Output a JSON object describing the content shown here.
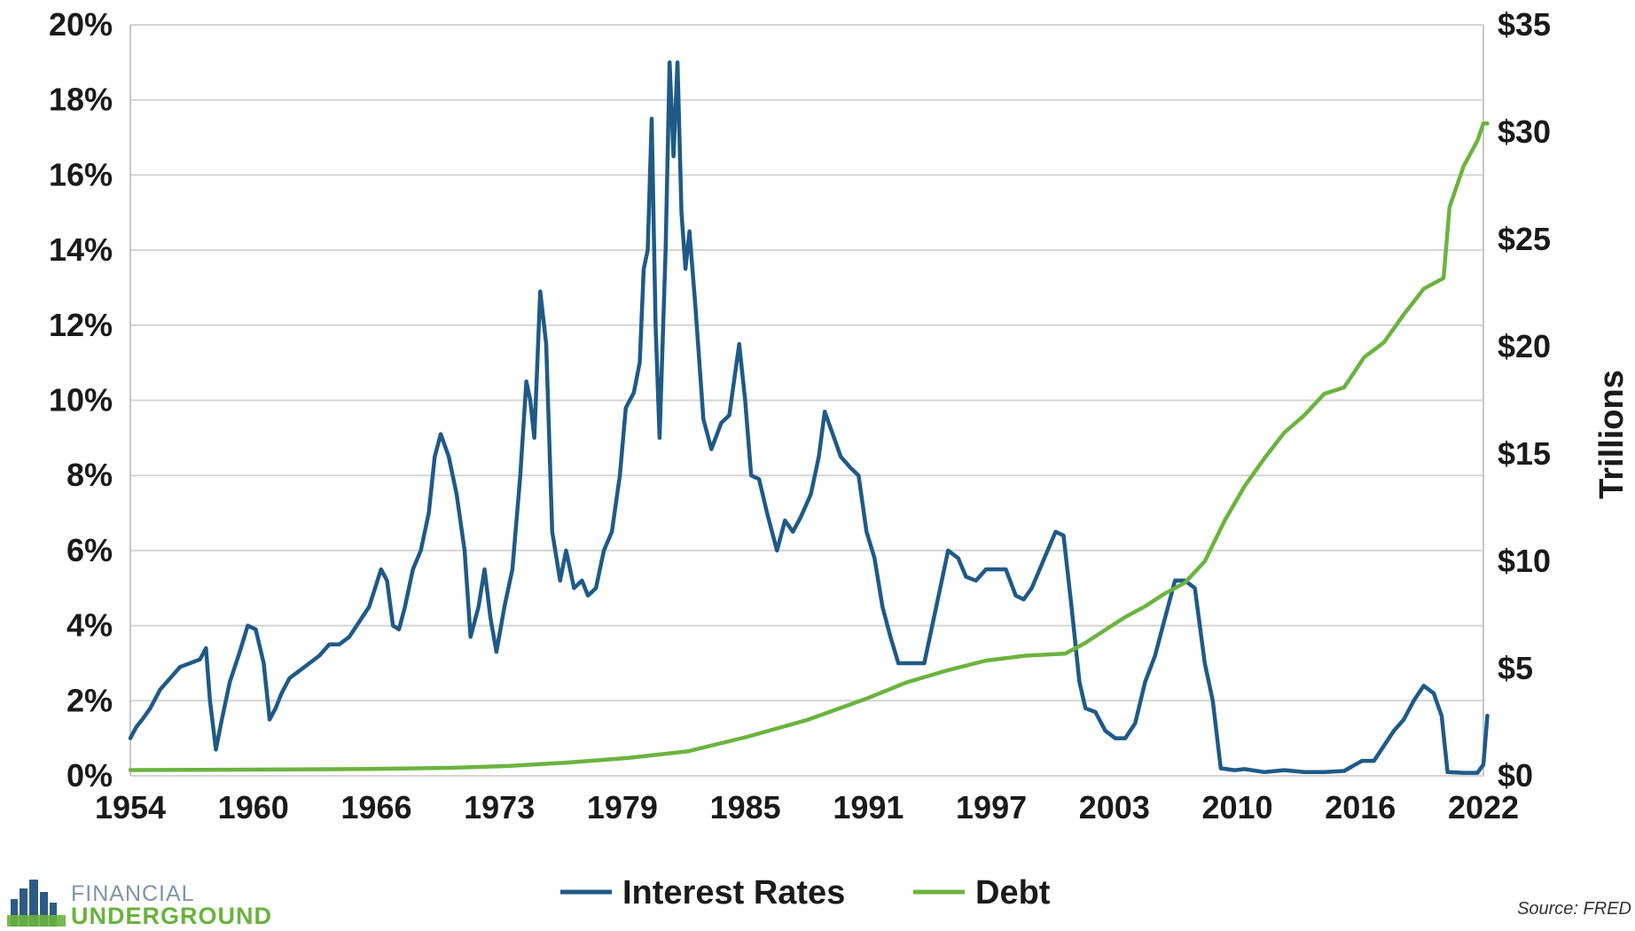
{
  "chart_data": {
    "type": "line",
    "title": "",
    "xlabel": "",
    "ylabel_left": "",
    "ylabel_right": "Trillions",
    "x_ticks": [
      "1954",
      "1960",
      "1966",
      "1973",
      "1979",
      "1985",
      "1991",
      "1997",
      "2003",
      "2010",
      "2016",
      "2022"
    ],
    "xlim": [
      1954,
      2022
    ],
    "y_left_ticks": [
      "0%",
      "2%",
      "4%",
      "6%",
      "8%",
      "10%",
      "12%",
      "14%",
      "16%",
      "18%",
      "20%"
    ],
    "y_left_lim": [
      0,
      20
    ],
    "y_right_ticks": [
      "$0",
      "$5",
      "$10",
      "$15",
      "$20",
      "$25",
      "$30",
      "$35"
    ],
    "y_right_lim": [
      0,
      35
    ],
    "grid": true,
    "legend_position": "bottom",
    "series": [
      {
        "name": "Interest Rates",
        "axis": "left",
        "color": "#1f5a87",
        "points": [
          [
            1954.0,
            1.0
          ],
          [
            1954.3,
            1.3
          ],
          [
            1954.6,
            1.5
          ],
          [
            1955.0,
            1.8
          ],
          [
            1955.5,
            2.3
          ],
          [
            1956.0,
            2.6
          ],
          [
            1956.5,
            2.9
          ],
          [
            1957.0,
            3.0
          ],
          [
            1957.5,
            3.1
          ],
          [
            1957.8,
            3.4
          ],
          [
            1958.0,
            2.0
          ],
          [
            1958.3,
            0.7
          ],
          [
            1958.6,
            1.5
          ],
          [
            1959.0,
            2.5
          ],
          [
            1959.5,
            3.3
          ],
          [
            1959.9,
            4.0
          ],
          [
            1960.3,
            3.9
          ],
          [
            1960.7,
            3.0
          ],
          [
            1961.0,
            1.5
          ],
          [
            1961.3,
            1.8
          ],
          [
            1961.6,
            2.2
          ],
          [
            1962.0,
            2.6
          ],
          [
            1962.5,
            2.8
          ],
          [
            1963.0,
            3.0
          ],
          [
            1963.5,
            3.2
          ],
          [
            1964.0,
            3.5
          ],
          [
            1964.5,
            3.5
          ],
          [
            1965.0,
            3.7
          ],
          [
            1965.5,
            4.1
          ],
          [
            1966.0,
            4.5
          ],
          [
            1966.3,
            5.0
          ],
          [
            1966.6,
            5.5
          ],
          [
            1966.9,
            5.2
          ],
          [
            1967.2,
            4.0
          ],
          [
            1967.5,
            3.9
          ],
          [
            1967.8,
            4.5
          ],
          [
            1968.2,
            5.5
          ],
          [
            1968.6,
            6.0
          ],
          [
            1969.0,
            7.0
          ],
          [
            1969.3,
            8.5
          ],
          [
            1969.6,
            9.1
          ],
          [
            1970.0,
            8.5
          ],
          [
            1970.4,
            7.5
          ],
          [
            1970.8,
            6.0
          ],
          [
            1971.1,
            3.7
          ],
          [
            1971.5,
            4.5
          ],
          [
            1971.8,
            5.5
          ],
          [
            1972.1,
            4.2
          ],
          [
            1972.4,
            3.3
          ],
          [
            1972.8,
            4.5
          ],
          [
            1973.2,
            5.5
          ],
          [
            1973.6,
            8.0
          ],
          [
            1973.9,
            10.5
          ],
          [
            1974.1,
            10.0
          ],
          [
            1974.3,
            9.0
          ],
          [
            1974.6,
            12.9
          ],
          [
            1974.9,
            11.5
          ],
          [
            1975.2,
            6.5
          ],
          [
            1975.6,
            5.2
          ],
          [
            1975.9,
            6.0
          ],
          [
            1976.3,
            5.0
          ],
          [
            1976.7,
            5.2
          ],
          [
            1977.0,
            4.8
          ],
          [
            1977.4,
            5.0
          ],
          [
            1977.8,
            6.0
          ],
          [
            1978.2,
            6.5
          ],
          [
            1978.6,
            8.0
          ],
          [
            1978.9,
            9.8
          ],
          [
            1979.3,
            10.2
          ],
          [
            1979.6,
            11.0
          ],
          [
            1979.8,
            13.5
          ],
          [
            1980.0,
            14.0
          ],
          [
            1980.2,
            17.5
          ],
          [
            1980.4,
            12.0
          ],
          [
            1980.6,
            9.0
          ],
          [
            1980.9,
            14.0
          ],
          [
            1981.1,
            19.0
          ],
          [
            1981.3,
            16.5
          ],
          [
            1981.5,
            19.0
          ],
          [
            1981.7,
            15.0
          ],
          [
            1981.9,
            13.5
          ],
          [
            1982.1,
            14.5
          ],
          [
            1982.4,
            12.5
          ],
          [
            1982.8,
            9.5
          ],
          [
            1983.2,
            8.7
          ],
          [
            1983.7,
            9.4
          ],
          [
            1984.1,
            9.6
          ],
          [
            1984.6,
            11.5
          ],
          [
            1984.9,
            10.0
          ],
          [
            1985.2,
            8.0
          ],
          [
            1985.6,
            7.9
          ],
          [
            1986.0,
            7.0
          ],
          [
            1986.5,
            6.0
          ],
          [
            1986.9,
            6.8
          ],
          [
            1987.3,
            6.5
          ],
          [
            1987.7,
            6.9
          ],
          [
            1988.2,
            7.5
          ],
          [
            1988.6,
            8.5
          ],
          [
            1988.9,
            9.7
          ],
          [
            1989.3,
            9.1
          ],
          [
            1989.7,
            8.5
          ],
          [
            1990.2,
            8.2
          ],
          [
            1990.6,
            8.0
          ],
          [
            1991.0,
            6.5
          ],
          [
            1991.4,
            5.8
          ],
          [
            1991.8,
            4.5
          ],
          [
            1992.2,
            3.7
          ],
          [
            1992.6,
            3.0
          ],
          [
            1993.0,
            3.0
          ],
          [
            1993.5,
            3.0
          ],
          [
            1993.9,
            3.0
          ],
          [
            1994.3,
            4.0
          ],
          [
            1994.7,
            5.0
          ],
          [
            1995.1,
            6.0
          ],
          [
            1995.6,
            5.8
          ],
          [
            1996.0,
            5.3
          ],
          [
            1996.5,
            5.2
          ],
          [
            1997.0,
            5.5
          ],
          [
            1997.5,
            5.5
          ],
          [
            1998.0,
            5.5
          ],
          [
            1998.5,
            4.8
          ],
          [
            1998.9,
            4.7
          ],
          [
            1999.3,
            5.0
          ],
          [
            1999.7,
            5.5
          ],
          [
            2000.1,
            6.0
          ],
          [
            2000.5,
            6.5
          ],
          [
            2000.9,
            6.4
          ],
          [
            2001.3,
            4.5
          ],
          [
            2001.7,
            2.5
          ],
          [
            2002.0,
            1.8
          ],
          [
            2002.5,
            1.7
          ],
          [
            2003.0,
            1.2
          ],
          [
            2003.5,
            1.0
          ],
          [
            2004.0,
            1.0
          ],
          [
            2004.5,
            1.4
          ],
          [
            2005.0,
            2.5
          ],
          [
            2005.5,
            3.2
          ],
          [
            2006.0,
            4.2
          ],
          [
            2006.5,
            5.2
          ],
          [
            2007.0,
            5.2
          ],
          [
            2007.5,
            5.0
          ],
          [
            2008.0,
            3.0
          ],
          [
            2008.4,
            2.0
          ],
          [
            2008.8,
            0.2
          ],
          [
            2009.5,
            0.15
          ],
          [
            2010.0,
            0.18
          ],
          [
            2011.0,
            0.1
          ],
          [
            2012.0,
            0.15
          ],
          [
            2013.0,
            0.1
          ],
          [
            2014.0,
            0.1
          ],
          [
            2015.0,
            0.13
          ],
          [
            2015.9,
            0.4
          ],
          [
            2016.5,
            0.4
          ],
          [
            2017.0,
            0.8
          ],
          [
            2017.5,
            1.2
          ],
          [
            2018.0,
            1.5
          ],
          [
            2018.5,
            2.0
          ],
          [
            2019.0,
            2.4
          ],
          [
            2019.5,
            2.2
          ],
          [
            2019.9,
            1.6
          ],
          [
            2020.2,
            0.1
          ],
          [
            2021.0,
            0.08
          ],
          [
            2021.7,
            0.08
          ],
          [
            2022.0,
            0.3
          ],
          [
            2022.2,
            1.6
          ]
        ]
      },
      {
        "name": "Debt",
        "axis": "right",
        "color": "#6cb33f",
        "points": [
          [
            1954.0,
            0.27
          ],
          [
            1960.0,
            0.29
          ],
          [
            1966.0,
            0.32
          ],
          [
            1970.0,
            0.37
          ],
          [
            1973.0,
            0.46
          ],
          [
            1976.0,
            0.62
          ],
          [
            1979.0,
            0.83
          ],
          [
            1982.0,
            1.14
          ],
          [
            1985.0,
            1.82
          ],
          [
            1988.0,
            2.6
          ],
          [
            1991.0,
            3.6
          ],
          [
            1993.0,
            4.35
          ],
          [
            1995.0,
            4.9
          ],
          [
            1997.0,
            5.37
          ],
          [
            1999.0,
            5.6
          ],
          [
            2001.0,
            5.7
          ],
          [
            2002.0,
            6.2
          ],
          [
            2003.0,
            6.8
          ],
          [
            2004.0,
            7.4
          ],
          [
            2005.0,
            7.9
          ],
          [
            2006.0,
            8.5
          ],
          [
            2007.0,
            9.0
          ],
          [
            2008.0,
            10.0
          ],
          [
            2009.0,
            11.9
          ],
          [
            2010.0,
            13.5
          ],
          [
            2011.0,
            14.8
          ],
          [
            2012.0,
            16.0
          ],
          [
            2013.0,
            16.8
          ],
          [
            2014.0,
            17.8
          ],
          [
            2015.0,
            18.1
          ],
          [
            2016.0,
            19.5
          ],
          [
            2017.0,
            20.2
          ],
          [
            2018.0,
            21.5
          ],
          [
            2019.0,
            22.7
          ],
          [
            2020.0,
            23.2
          ],
          [
            2020.3,
            26.5
          ],
          [
            2021.0,
            28.4
          ],
          [
            2021.7,
            29.6
          ],
          [
            2022.0,
            30.4
          ],
          [
            2022.2,
            30.4
          ]
        ]
      }
    ]
  },
  "logo": {
    "line1": "FINANCIAL",
    "line2": "UNDERGROUND"
  },
  "source": "Source: FRED"
}
